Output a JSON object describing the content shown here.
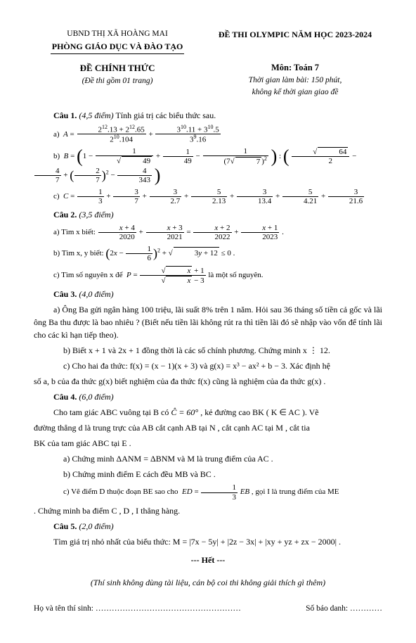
{
  "header": {
    "org1": "UBND THỊ XÃ HOÀNG MAI",
    "org2": "PHÒNG GIÁO DỤC VÀ ĐÀO TẠO",
    "exam_title": "ĐỀ THI OLYMPIC NĂM HỌC 2023-2024"
  },
  "title": {
    "de": "ĐỀ CHÍNH THỨC",
    "de_sub": "(Đề thi gồm 01 trang)",
    "mon": "Môn: Toán 7",
    "time1": "Thời gian làm bài: 150 phút,",
    "time2": "không kể thời gian giao đề"
  },
  "cau1": {
    "head": "Câu 1.",
    "pts": "(4,5 điểm)",
    "stem": "Tính giá trị các biểu thức sau."
  },
  "cau2": {
    "head": "Câu 2.",
    "pts": "(3,5 điểm)",
    "a_stem": "a) Tìm x biết:",
    "b_stem": "b) Tìm x, y biết:",
    "c_stem": "c) Tìm số nguyên x để",
    "c_tail": "là một số nguyên."
  },
  "cau3": {
    "head": "Câu 3.",
    "pts": "(4,0 điểm)",
    "a": "a) Ông Ba gửi ngân hàng 100 triệu, lãi suất 8% trên 1 năm. Hỏi sau 36 tháng số tiền cả gốc và lãi ông Ba thu được là bao nhiêu ? (Biết nếu tiền lãi không rút ra thì tiền lãi đó sẽ nhập vào vốn để tính lãi cho các kì hạn tiếp theo).",
    "b": "b) Biết x + 1 và 2x + 1 đồng thời là các số chính phương. Chứng minh x ⋮ 12.",
    "c1": "c) Cho hai đa thức: f(x) = (x − 1)(x + 3)  và  g(x) = x³ − ax² + b − 3. Xác định hệ",
    "c2": "số a, b của đa thức g(x) biết nghiệm của đa thức f(x) cũng là nghiệm của đa thức g(x) ."
  },
  "cau4": {
    "head": "Câu 4.",
    "pts": "(6,0 điểm)",
    "p1a": "Cho tam giác ABC vuông tại B có",
    "p1b": ", kẻ đường cao BK ( K ∈ AC ). Vẽ",
    "p2": "đường thẳng d là trung trực của AB cắt cạnh AB tại N , cắt cạnh AC tại M , cắt tia",
    "p3": "BK của tam giác ABC tại E .",
    "a": "a) Chứng minh ΔANM = ΔBNM  và M là trung điểm của AC .",
    "b": "b) Chứng minh điểm E cách đều MB và BC .",
    "c1": "c) Vẽ điểm D thuộc đoạn BE sao cho",
    "c2": ", gọi I là trung điểm của ME",
    "cm": ". Chứng minh ba điểm C , D , I thẳng hàng."
  },
  "cau5": {
    "head": "Câu 5.",
    "pts": "(2,0 điểm)",
    "stem": "Tìm giá trị nhỏ nhất của biểu thức: M = |7x − 5y| + |2z − 3x| + |xy + yz + zx − 2000| ."
  },
  "het": "--- Hết ---",
  "note": "(Thí sinh không dùng tài liệu, cán bộ coi thi không giải thích gì thêm)",
  "sign": {
    "name": "Họ và tên thí sinh: ………………………………………………",
    "sbd": "Số báo danh: …………"
  }
}
